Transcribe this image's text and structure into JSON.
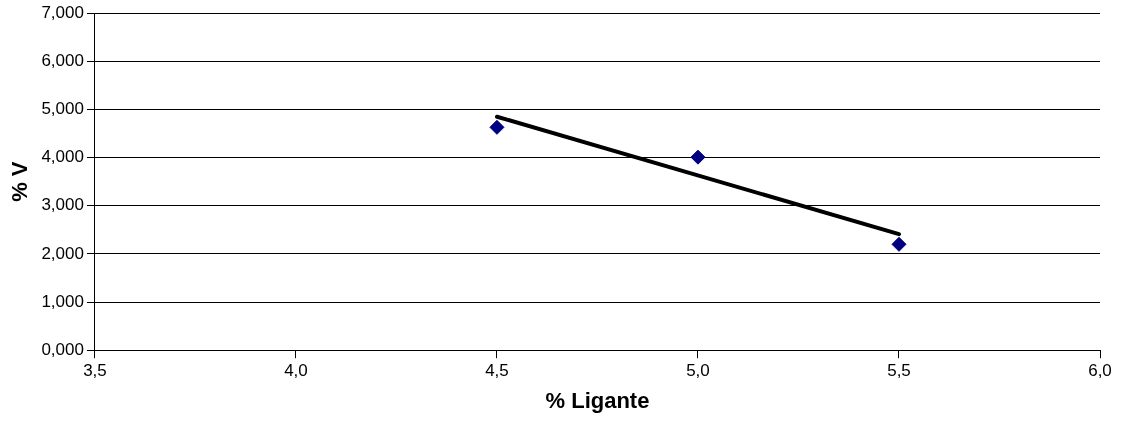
{
  "chart_data": {
    "type": "scatter",
    "xlabel": "% Ligante",
    "ylabel": "% V",
    "series": [
      {
        "type": "scatter",
        "color": "#000080",
        "x": [
          4.5,
          5.0,
          5.5
        ],
        "values": [
          4.63,
          4.01,
          2.2
        ],
        "marker": "diamond"
      },
      {
        "type": "line",
        "color": "#000000",
        "x": [
          4.5,
          5.5
        ],
        "values": [
          4.85,
          2.41
        ],
        "marker": "none",
        "line_style": "solid"
      }
    ],
    "xlim": [
      3.5,
      6.0
    ],
    "xticks": [
      {
        "value": 3.5,
        "label": "3,5"
      },
      {
        "value": 4.0,
        "label": "4,0"
      },
      {
        "value": 4.5,
        "label": "4,5"
      },
      {
        "value": 5.0,
        "label": "5,0"
      },
      {
        "value": 5.5,
        "label": "5,5"
      },
      {
        "value": 6.0,
        "label": "6,0"
      }
    ],
    "ylim": [
      0,
      7
    ],
    "yticks": [
      {
        "value": 0,
        "label": "0,000"
      },
      {
        "value": 1,
        "label": "1,000"
      },
      {
        "value": 2,
        "label": "2,000"
      },
      {
        "value": 3,
        "label": "3,000"
      },
      {
        "value": 4,
        "label": "4,000"
      },
      {
        "value": 5,
        "label": "5,000"
      },
      {
        "value": 6,
        "label": "6,000"
      },
      {
        "value": 7,
        "label": "7,000"
      }
    ],
    "grid": "y",
    "legend": false
  }
}
